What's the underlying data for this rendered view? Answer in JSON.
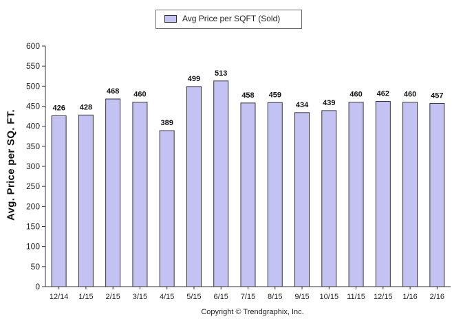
{
  "chart_data": {
    "type": "bar",
    "legend": [
      "Avg Price per SQFT (Sold)"
    ],
    "legend_position": "top-center",
    "ylabel": "Avg. Price per SQ. FT.",
    "footer": "Copyright © Trendgraphix, Inc.",
    "categories": [
      "12/14",
      "1/15",
      "2/15",
      "3/15",
      "4/15",
      "5/15",
      "6/15",
      "7/15",
      "8/15",
      "9/15",
      "10/15",
      "11/15",
      "12/15",
      "1/16",
      "2/16"
    ],
    "series": [
      {
        "name": "Avg Price per SQFT (Sold)",
        "values": [
          426,
          428,
          468,
          460,
          389,
          499,
          513,
          458,
          459,
          434,
          439,
          460,
          462,
          460,
          457
        ]
      }
    ],
    "data_labels": [
      "426",
      "428",
      "468",
      "460",
      "389",
      "499",
      "513",
      "458",
      "459",
      "434",
      "439",
      "460",
      "462",
      "460",
      "457"
    ],
    "yticks": [
      "0",
      "50",
      "100",
      "150",
      "200",
      "250",
      "300",
      "350",
      "400",
      "450",
      "500",
      "550",
      "600"
    ],
    "ylim": [
      0,
      600
    ],
    "grid": false,
    "colors": {
      "bar_fill": "#c3c2f2",
      "bar_stroke": "#333333",
      "axis": "#333333"
    }
  }
}
